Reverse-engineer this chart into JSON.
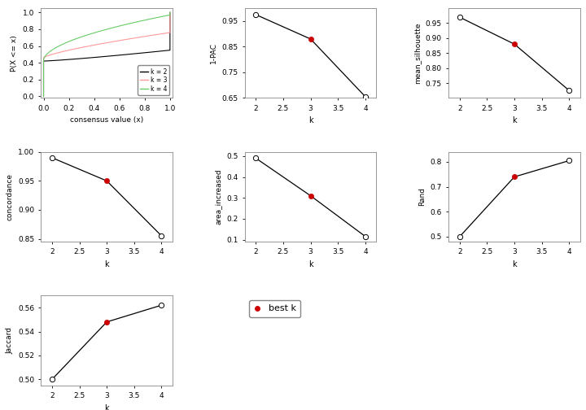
{
  "ecdf": {
    "k2": {
      "color": "#000000"
    },
    "k3": {
      "color": "#FF9999"
    },
    "k4": {
      "color": "#66CC66"
    }
  },
  "pac": {
    "k": [
      2,
      3,
      4
    ],
    "values": [
      0.975,
      0.88,
      0.655
    ],
    "best_k": 3,
    "ylabel": "1-PAC",
    "ylim": [
      0.65,
      1.0
    ],
    "yticks": [
      0.65,
      0.75,
      0.85,
      0.95
    ]
  },
  "silhouette": {
    "k": [
      2,
      3,
      4
    ],
    "values": [
      0.97,
      0.88,
      0.725
    ],
    "best_k": 3,
    "ylabel": "mean_silhouette",
    "ylim": [
      0.7,
      1.0
    ],
    "yticks": [
      0.75,
      0.8,
      0.85,
      0.9,
      0.95
    ]
  },
  "concordance": {
    "k": [
      2,
      3,
      4
    ],
    "values": [
      0.99,
      0.95,
      0.855
    ],
    "best_k": 3,
    "ylabel": "concordance",
    "ylim": [
      0.845,
      1.0
    ],
    "yticks": [
      0.85,
      0.9,
      0.95,
      1.0
    ]
  },
  "area_increased": {
    "k": [
      2,
      3,
      4
    ],
    "values": [
      0.49,
      0.31,
      0.115
    ],
    "best_k": 3,
    "ylabel": "area_increased",
    "ylim": [
      0.09,
      0.52
    ],
    "yticks": [
      0.1,
      0.2,
      0.3,
      0.4,
      0.5
    ]
  },
  "rand": {
    "k": [
      2,
      3,
      4
    ],
    "values": [
      0.5,
      0.74,
      0.805
    ],
    "best_k": 3,
    "ylabel": "Rand",
    "ylim": [
      0.48,
      0.84
    ],
    "yticks": [
      0.5,
      0.6,
      0.7,
      0.8
    ]
  },
  "jaccard": {
    "k": [
      2,
      3,
      4
    ],
    "values": [
      0.5,
      0.548,
      0.562
    ],
    "best_k": 3,
    "ylabel": "Jaccard",
    "ylim": [
      0.495,
      0.57
    ],
    "yticks": [
      0.5,
      0.52,
      0.54,
      0.56
    ]
  },
  "bg_color": "#FFFFFF",
  "line_color": "#000000",
  "open_marker_color": "#FFFFFF",
  "best_k_color": "#CC0000",
  "font_size": 6.5,
  "label_size": 7.0
}
